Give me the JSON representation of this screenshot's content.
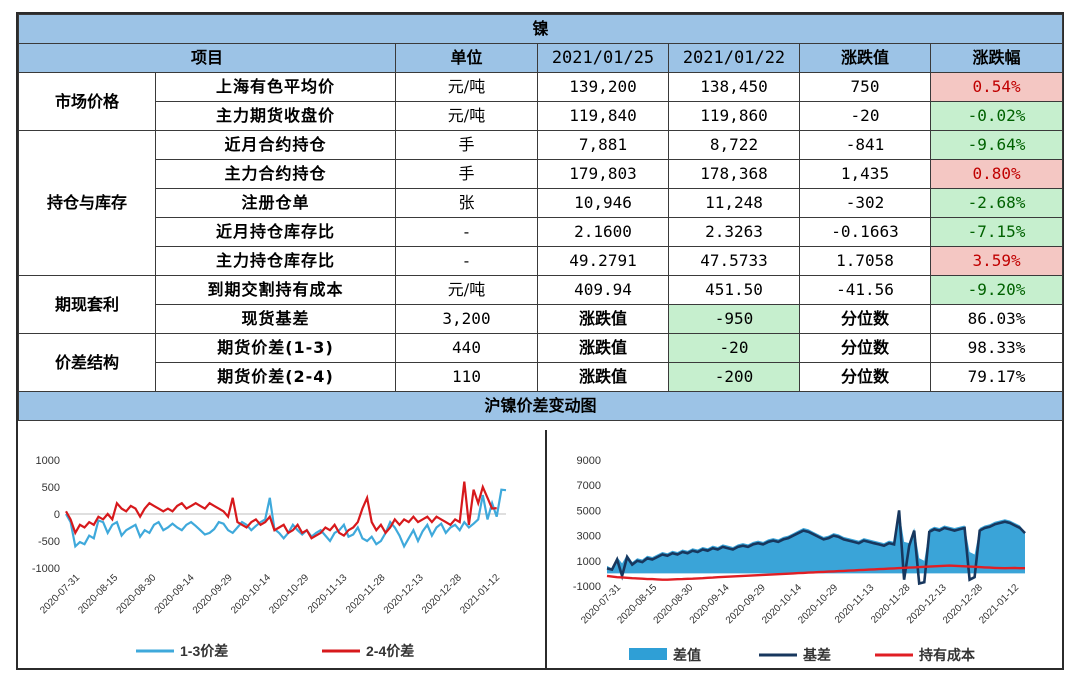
{
  "title": "镍",
  "headers": [
    "项目",
    "单位",
    "2021/01/25",
    "2021/01/22",
    "涨跌值",
    "涨跌幅"
  ],
  "categories": {
    "market": "市场价格",
    "position": "持仓与库存",
    "arb": "期现套利",
    "spread": "价差结构"
  },
  "rows": [
    {
      "item": "上海有色平均价",
      "unit": "元/吨",
      "v1": "139,200",
      "v2": "138,450",
      "chg": "750",
      "pct": "0.54%"
    },
    {
      "item": "主力期货收盘价",
      "unit": "元/吨",
      "v1": "119,840",
      "v2": "119,860",
      "chg": "-20",
      "pct": "-0.02%"
    },
    {
      "item": "近月合约持仓",
      "unit": "手",
      "v1": "7,881",
      "v2": "8,722",
      "chg": "-841",
      "pct": "-9.64%"
    },
    {
      "item": "主力合约持仓",
      "unit": "手",
      "v1": "179,803",
      "v2": "178,368",
      "chg": "1,435",
      "pct": "0.80%"
    },
    {
      "item": "注册仓单",
      "unit": "张",
      "v1": "10,946",
      "v2": "11,248",
      "chg": "-302",
      "pct": "-2.68%"
    },
    {
      "item": "近月持仓库存比",
      "unit": "-",
      "v1": "2.1600",
      "v2": "2.3263",
      "chg": "-0.1663",
      "pct": "-7.15%"
    },
    {
      "item": "主力持仓库存比",
      "unit": "-",
      "v1": "49.2791",
      "v2": "47.5733",
      "chg": "1.7058",
      "pct": "3.59%"
    },
    {
      "item": "到期交割持有成本",
      "unit": "元/吨",
      "v1": "409.94",
      "v2": "451.50",
      "chg": "-41.56",
      "pct": "-9.20%"
    }
  ],
  "special_rows": [
    {
      "item": "现货基差",
      "val": "3,200",
      "lbl1": "涨跌值",
      "chg": "-950",
      "lbl2": "分位数",
      "pct": "86.03%"
    },
    {
      "item": "期货价差(1-3)",
      "val": "440",
      "lbl1": "涨跌值",
      "chg": "-20",
      "lbl2": "分位数",
      "pct": "98.33%"
    },
    {
      "item": "期货价差(2-4)",
      "val": "110",
      "lbl1": "涨跌值",
      "chg": "-200",
      "lbl2": "分位数",
      "pct": "79.17%"
    }
  ],
  "chart_section_title": "沪镍价差变动图",
  "colors": {
    "header_bg": "#9cc3e6",
    "pos_bg": "#f4c7c3",
    "neg_bg": "#c6efce",
    "line_a": "#3fa9db",
    "line_b": "#d7191c",
    "area": "#2f9fd6",
    "basis": "#17375e",
    "cost": "#e01e24"
  },
  "chart_data": [
    {
      "type": "line",
      "title": "",
      "x_ticks": [
        "2020-07-31",
        "2020-08-15",
        "2020-08-30",
        "2020-09-14",
        "2020-09-29",
        "2020-10-14",
        "2020-10-29",
        "2020-11-13",
        "2020-11-28",
        "2020-12-13",
        "2020-12-28",
        "2021-01-12"
      ],
      "ylim": [
        -1000,
        1000
      ],
      "y_ticks": [
        1000,
        500,
        0,
        -500,
        -1000
      ],
      "legend_position": "bottom",
      "series": [
        {
          "name": "1-3价差",
          "values": [
            0,
            -150,
            -600,
            -520,
            -560,
            -400,
            -450,
            -120,
            -150,
            -350,
            -200,
            -150,
            -400,
            -300,
            -250,
            -200,
            -420,
            -300,
            -350,
            -200,
            -150,
            -300,
            -250,
            -180,
            -250,
            -300,
            -200,
            -150,
            -220,
            -300,
            -380,
            -350,
            -280,
            -150,
            -180,
            -300,
            -350,
            -250,
            -150,
            -200,
            -300,
            -220,
            -150,
            -100,
            300,
            -280,
            -350,
            -450,
            -350,
            -200,
            -300,
            -380,
            -300,
            -420,
            -350,
            -300,
            -400,
            -500,
            -350,
            -300,
            -200,
            -420,
            -380,
            -250,
            -450,
            -500,
            -420,
            -560,
            -500,
            -350,
            -150,
            -250,
            -400,
            -600,
            -450,
            -300,
            -500,
            -320,
            -200,
            -400,
            -250,
            -180,
            -350,
            -250,
            -200,
            -300,
            -150,
            -250,
            -180,
            -100,
            350,
            -100,
            200,
            -50,
            450,
            440
          ]
        },
        {
          "name": "2-4价差",
          "values": [
            50,
            -100,
            -350,
            -200,
            -250,
            -150,
            -200,
            -50,
            -100,
            0,
            -100,
            200,
            100,
            50,
            150,
            100,
            -50,
            100,
            200,
            150,
            100,
            50,
            100,
            50,
            150,
            200,
            100,
            150,
            200,
            150,
            100,
            200,
            150,
            100,
            50,
            -50,
            300,
            -150,
            -200,
            -250,
            -150,
            -100,
            -200,
            -150,
            -50,
            -300,
            -250,
            -200,
            -350,
            -300,
            -200,
            -350,
            -300,
            -450,
            -400,
            -350,
            -250,
            -300,
            -200,
            -350,
            -400,
            -300,
            -250,
            -150,
            100,
            300,
            -150,
            -300,
            -200,
            -350,
            -250,
            -100,
            -200,
            -100,
            -150,
            -50,
            -150,
            -100,
            -50,
            -150,
            -50,
            -100,
            -150,
            -200,
            -100,
            -150,
            600,
            -200,
            450,
            200,
            500,
            300,
            100,
            110
          ]
        }
      ]
    },
    {
      "type": "area",
      "title": "",
      "x_ticks": [
        "2020-07-31",
        "2020-08-15",
        "2020-08-30",
        "2020-09-14",
        "2020-09-29",
        "2020-10-14",
        "2020-10-29",
        "2020-11-13",
        "2020-11-28",
        "2020-12-13",
        "2020-12-28",
        "2021-01-12"
      ],
      "ylim": [
        -1000,
        9000
      ],
      "y_ticks": [
        9000,
        7000,
        5000,
        3000,
        1000,
        -1000
      ],
      "legend_position": "bottom",
      "series": [
        {
          "name": "差值",
          "values": [
            600,
            400,
            1300,
            800,
            1500,
            900,
            1200,
            1100,
            1400,
            1300,
            1500,
            1700,
            1600,
            1800,
            1700,
            1900,
            1800,
            2000,
            1900,
            2100,
            2000,
            2200,
            2100,
            2300,
            2200,
            2100,
            2300,
            2400,
            2300,
            2500,
            2600,
            2500,
            2700,
            2800,
            2700,
            2900,
            3000,
            3200,
            3400,
            3600,
            3500,
            3300,
            3100,
            2900,
            3000,
            3200,
            3100,
            2900,
            2800,
            2700,
            2600,
            2800,
            2700,
            2600,
            2500,
            2400,
            2600,
            2500,
            5000,
            2500,
            2400,
            3600,
            1200,
            1000,
            3500,
            3700,
            3600,
            3800,
            3700,
            3600,
            3700,
            3800,
            1700,
            1500,
            3600,
            3800,
            3900,
            4100,
            4200,
            4300,
            4200,
            4000,
            3800,
            3200
          ]
        },
        {
          "name": "基差",
          "values": [
            400,
            300,
            1100,
            -200,
            1300,
            700,
            1000,
            900,
            1200,
            1100,
            1300,
            1500,
            1400,
            1600,
            1500,
            1700,
            1600,
            1800,
            1700,
            1900,
            1800,
            2000,
            1900,
            2100,
            2000,
            1900,
            2100,
            2200,
            2100,
            2300,
            2400,
            2300,
            2500,
            2600,
            2500,
            2700,
            2800,
            3000,
            3200,
            3400,
            3300,
            3100,
            2900,
            2700,
            2800,
            3000,
            2900,
            2700,
            2600,
            2500,
            2400,
            2600,
            2500,
            2400,
            2300,
            2200,
            2400,
            2300,
            5000,
            -500,
            2200,
            3400,
            -800,
            -700,
            3300,
            3500,
            3400,
            3600,
            3500,
            3400,
            3500,
            3600,
            -500,
            -300,
            3400,
            3600,
            3700,
            3900,
            4000,
            4100,
            4000,
            3800,
            3600,
            3200
          ]
        },
        {
          "name": "持有成本",
          "values": [
            -200,
            -250,
            -300,
            -320,
            -350,
            -380,
            -400,
            -420,
            -450,
            -450,
            -480,
            -500,
            -500,
            -480,
            -460,
            -450,
            -430,
            -420,
            -400,
            -380,
            -350,
            -330,
            -300,
            -280,
            -260,
            -240,
            -220,
            -200,
            -180,
            -160,
            -140,
            -120,
            -100,
            -80,
            -60,
            -40,
            -20,
            0,
            20,
            40,
            60,
            80,
            100,
            120,
            140,
            160,
            180,
            200,
            220,
            240,
            260,
            280,
            300,
            320,
            340,
            360,
            380,
            400,
            420,
            440,
            460,
            480,
            500,
            520,
            540,
            560,
            580,
            600,
            620,
            600,
            580,
            560,
            540,
            520,
            500,
            480,
            460,
            440,
            420,
            410,
            420,
            430,
            410,
            410
          ]
        }
      ]
    }
  ]
}
